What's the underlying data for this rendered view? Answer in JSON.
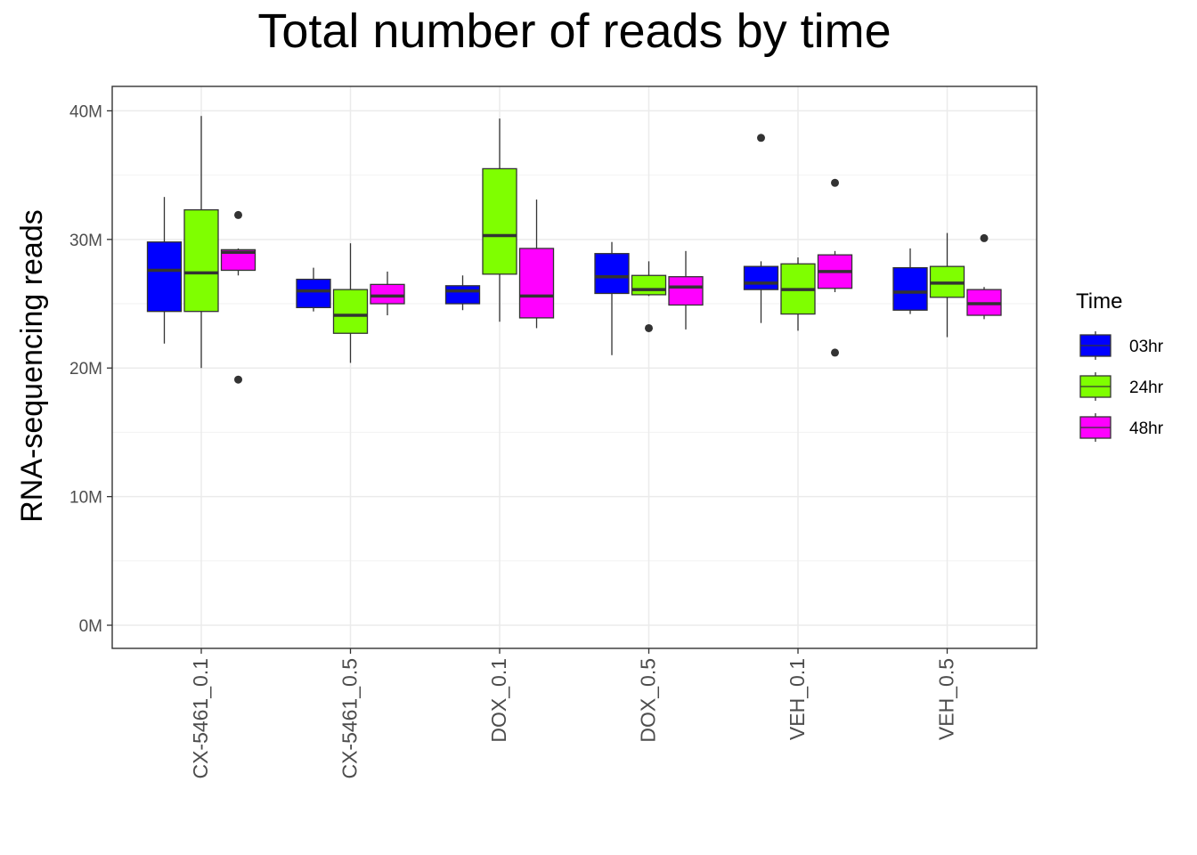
{
  "chart_data": {
    "type": "box",
    "title": "Total number of reads by time",
    "xlabel": "",
    "ylabel": "RNA-sequencing reads",
    "categories": [
      "CX-5461_0.1",
      "CX-5461_0.5",
      "DOX_0.1",
      "DOX_0.5",
      "VEH_0.1",
      "VEH_0.5"
    ],
    "y_ticks": [
      0,
      10,
      20,
      30,
      40
    ],
    "y_tick_labels": [
      "0M",
      "10M",
      "20M",
      "30M",
      "40M"
    ],
    "y_unit": "M reads",
    "ylim": [
      -1.8,
      41.9
    ],
    "grid": true,
    "legend": {
      "title": "Time",
      "placement": "right"
    },
    "series": [
      {
        "name": "03hr",
        "color": "#0000FF",
        "boxes": [
          {
            "min": 21.9,
            "q1": 24.4,
            "median": 27.6,
            "q3": 29.8,
            "max": 33.3,
            "outliers": []
          },
          {
            "min": 24.4,
            "q1": 24.7,
            "median": 26.0,
            "q3": 26.9,
            "max": 27.8,
            "outliers": []
          },
          {
            "min": 24.5,
            "q1": 25.0,
            "median": 26.0,
            "q3": 26.4,
            "max": 27.2,
            "outliers": []
          },
          {
            "min": 21.0,
            "q1": 25.8,
            "median": 27.1,
            "q3": 28.9,
            "max": 29.8,
            "outliers": []
          },
          {
            "min": 23.5,
            "q1": 26.1,
            "median": 26.6,
            "q3": 27.9,
            "max": 28.3,
            "outliers": [
              37.9
            ]
          },
          {
            "min": 24.2,
            "q1": 24.5,
            "median": 25.9,
            "q3": 27.8,
            "max": 29.3,
            "outliers": []
          }
        ]
      },
      {
        "name": "24hr",
        "color": "#7FFF00",
        "boxes": [
          {
            "min": 20.0,
            "q1": 24.4,
            "median": 27.4,
            "q3": 32.3,
            "max": 39.6,
            "outliers": []
          },
          {
            "min": 20.4,
            "q1": 22.7,
            "median": 24.1,
            "q3": 26.1,
            "max": 29.7,
            "outliers": []
          },
          {
            "min": 23.6,
            "q1": 27.3,
            "median": 30.3,
            "q3": 35.5,
            "max": 39.4,
            "outliers": []
          },
          {
            "min": 25.6,
            "q1": 25.7,
            "median": 26.1,
            "q3": 27.2,
            "max": 28.3,
            "outliers": [
              23.1
            ]
          },
          {
            "min": 22.9,
            "q1": 24.2,
            "median": 26.1,
            "q3": 28.1,
            "max": 28.6,
            "outliers": []
          },
          {
            "min": 22.4,
            "q1": 25.5,
            "median": 26.6,
            "q3": 27.9,
            "max": 30.5,
            "outliers": []
          }
        ]
      },
      {
        "name": "48hr",
        "color": "#FF00FF",
        "boxes": [
          {
            "min": 27.2,
            "q1": 27.6,
            "median": 29.0,
            "q3": 29.2,
            "max": 29.3,
            "outliers": [
              31.9,
              19.1
            ]
          },
          {
            "min": 24.1,
            "q1": 25.0,
            "median": 25.6,
            "q3": 26.5,
            "max": 27.5,
            "outliers": []
          },
          {
            "min": 23.1,
            "q1": 23.9,
            "median": 25.6,
            "q3": 29.3,
            "max": 33.1,
            "outliers": []
          },
          {
            "min": 23.0,
            "q1": 24.9,
            "median": 26.3,
            "q3": 27.1,
            "max": 29.1,
            "outliers": []
          },
          {
            "min": 25.9,
            "q1": 26.2,
            "median": 27.5,
            "q3": 28.8,
            "max": 29.1,
            "outliers": [
              34.4,
              21.2
            ]
          },
          {
            "min": 23.8,
            "q1": 24.1,
            "median": 25.0,
            "q3": 26.1,
            "max": 26.3,
            "outliers": [
              30.1
            ]
          }
        ]
      }
    ]
  }
}
